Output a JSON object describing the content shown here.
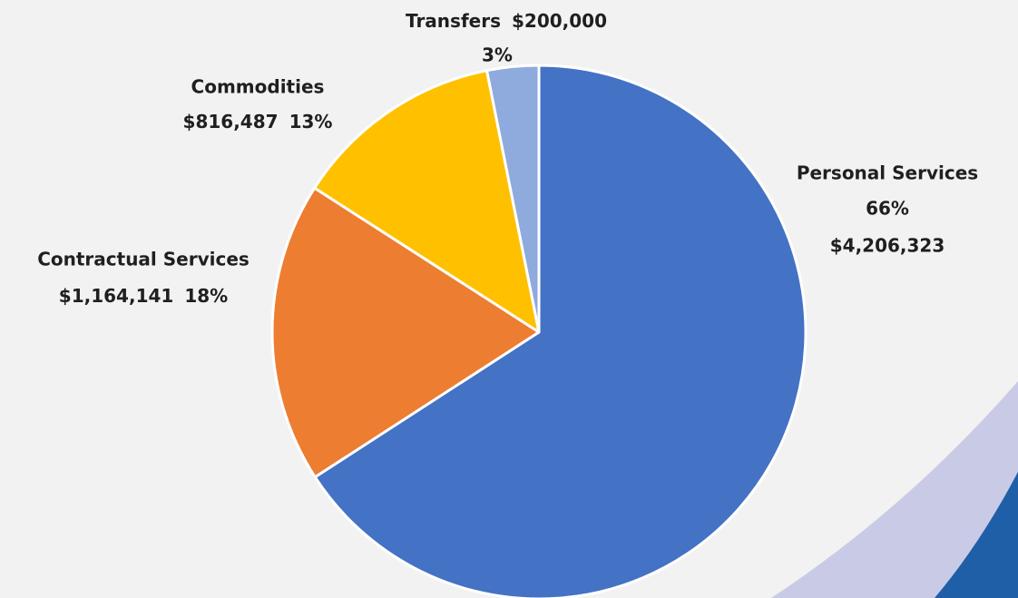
{
  "chart_data": {
    "type": "pie",
    "categories": [
      "Personal Services",
      "Contractual Services",
      "Commodities",
      "Transfers"
    ],
    "values": [
      4206323,
      1164141,
      816487,
      200000
    ],
    "value_labels": [
      "$4,206,323",
      "$1,164,141",
      "$816,487",
      "$200,000"
    ],
    "percents": [
      66,
      18,
      13,
      3
    ],
    "percent_labels": [
      "66%",
      "18%",
      "13%",
      "3%"
    ],
    "colors": [
      "#4472c4",
      "#ed7d31",
      "#ffc000",
      "#8faadc"
    ]
  }
}
